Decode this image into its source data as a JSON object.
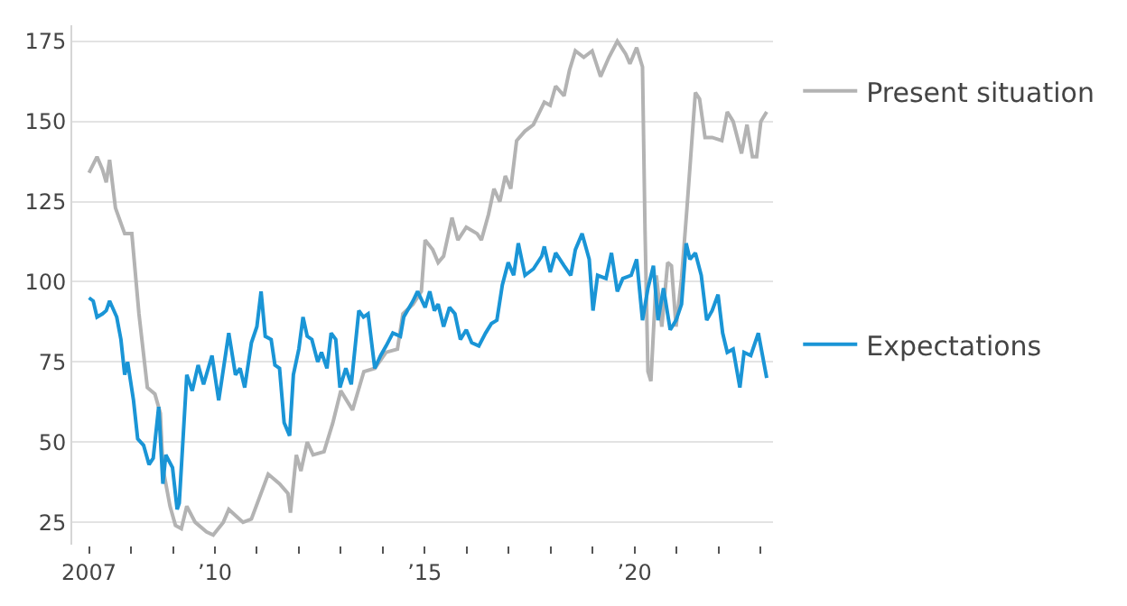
{
  "chart_data": {
    "type": "line",
    "xlim": [
      2006.6,
      2023.3
    ],
    "ylim": [
      18,
      180
    ],
    "xticks": [
      {
        "value": 2007,
        "label": "2007"
      },
      {
        "value": 2008,
        "label": null
      },
      {
        "value": 2009,
        "label": null
      },
      {
        "value": 2010,
        "label": "’10"
      },
      {
        "value": 2011,
        "label": null
      },
      {
        "value": 2012,
        "label": null
      },
      {
        "value": 2013,
        "label": null
      },
      {
        "value": 2014,
        "label": null
      },
      {
        "value": 2015,
        "label": "’15"
      },
      {
        "value": 2016,
        "label": null
      },
      {
        "value": 2017,
        "label": null
      },
      {
        "value": 2018,
        "label": null
      },
      {
        "value": 2019,
        "label": null
      },
      {
        "value": 2020,
        "label": "’20"
      },
      {
        "value": 2021,
        "label": null
      },
      {
        "value": 2022,
        "label": null
      },
      {
        "value": 2023,
        "label": null
      }
    ],
    "yticks": [
      25,
      50,
      75,
      100,
      125,
      150,
      175
    ],
    "grid": "y",
    "legend": "right",
    "marker": "none",
    "line_style": "solid",
    "series": [
      {
        "name": "Present situation",
        "color": "#b3b3b3",
        "x": [
          2007.0,
          2007.19,
          2007.32,
          2007.41,
          2007.49,
          2007.63,
          2007.85,
          2008.02,
          2008.19,
          2008.39,
          2008.57,
          2008.7,
          2008.76,
          2008.93,
          2009.06,
          2009.2,
          2009.33,
          2009.53,
          2009.8,
          2009.96,
          2010.2,
          2010.33,
          2010.67,
          2010.87,
          2011.27,
          2011.54,
          2011.74,
          2011.8,
          2011.94,
          2012.05,
          2012.2,
          2012.34,
          2012.6,
          2012.81,
          2013.0,
          2013.28,
          2013.55,
          2013.81,
          2014.08,
          2014.35,
          2014.48,
          2014.72,
          2014.92,
          2015.01,
          2015.19,
          2015.32,
          2015.45,
          2015.65,
          2015.79,
          2015.99,
          2016.25,
          2016.35,
          2016.52,
          2016.65,
          2016.79,
          2016.92,
          2017.05,
          2017.19,
          2017.39,
          2017.59,
          2017.85,
          2017.99,
          2018.12,
          2018.32,
          2018.45,
          2018.59,
          2018.79,
          2018.99,
          2019.19,
          2019.39,
          2019.59,
          2019.79,
          2019.89,
          2020.05,
          2020.19,
          2020.25,
          2020.32,
          2020.39,
          2020.52,
          2020.65,
          2020.79,
          2020.88,
          2020.99,
          2021.12,
          2021.25,
          2021.45,
          2021.55,
          2021.68,
          2021.85,
          2022.08,
          2022.21,
          2022.35,
          2022.55,
          2022.68,
          2022.81,
          2022.91,
          2023.01,
          2023.15
        ],
        "values": [
          134,
          139,
          135,
          131,
          138,
          123,
          115,
          115,
          90,
          67,
          65,
          59,
          42,
          30,
          24,
          23,
          30,
          25,
          22,
          21,
          25,
          29,
          25,
          26,
          40,
          37,
          34,
          28,
          46,
          41,
          50,
          46,
          47,
          56,
          66,
          60,
          72,
          73,
          78,
          79,
          90,
          93,
          97,
          113,
          110,
          106,
          108,
          120,
          113,
          117,
          115,
          113,
          121,
          129,
          125,
          133,
          129,
          144,
          147,
          149,
          156,
          155,
          161,
          158,
          166,
          172,
          170,
          172,
          164,
          170,
          175,
          171,
          168,
          173,
          167,
          116,
          72,
          69,
          102,
          86,
          106,
          105,
          86,
          101,
          123,
          159,
          157,
          145,
          145,
          144,
          153,
          150,
          140,
          149,
          139,
          139,
          150,
          153
        ]
      },
      {
        "name": "Expectations",
        "color": "#1a95d6",
        "x": [
          2007.0,
          2007.1,
          2007.19,
          2007.32,
          2007.41,
          2007.49,
          2007.66,
          2007.76,
          2007.85,
          2007.92,
          2008.06,
          2008.16,
          2008.3,
          2008.43,
          2008.53,
          2008.66,
          2008.76,
          2008.83,
          2008.99,
          2009.1,
          2009.15,
          2009.33,
          2009.46,
          2009.6,
          2009.73,
          2009.93,
          2010.09,
          2010.33,
          2010.49,
          2010.6,
          2010.71,
          2010.87,
          2011.0,
          2011.1,
          2011.2,
          2011.34,
          2011.43,
          2011.54,
          2011.65,
          2011.78,
          2011.87,
          2012.0,
          2012.1,
          2012.2,
          2012.31,
          2012.45,
          2012.54,
          2012.67,
          2012.77,
          2012.88,
          2012.98,
          2013.12,
          2013.25,
          2013.43,
          2013.54,
          2013.65,
          2013.81,
          2013.95,
          2014.08,
          2014.24,
          2014.42,
          2014.5,
          2014.72,
          2014.83,
          2015.01,
          2015.12,
          2015.23,
          2015.32,
          2015.45,
          2015.59,
          2015.72,
          2015.85,
          2015.99,
          2016.12,
          2016.29,
          2016.45,
          2016.59,
          2016.72,
          2016.85,
          2016.99,
          2017.12,
          2017.23,
          2017.39,
          2017.59,
          2017.79,
          2017.85,
          2017.99,
          2018.12,
          2018.32,
          2018.48,
          2018.59,
          2018.75,
          2018.92,
          2019.01,
          2019.12,
          2019.32,
          2019.45,
          2019.59,
          2019.72,
          2019.92,
          2020.05,
          2020.19,
          2020.32,
          2020.45,
          2020.56,
          2020.69,
          2020.85,
          2020.99,
          2021.12,
          2021.23,
          2021.32,
          2021.45,
          2021.59,
          2021.72,
          2021.85,
          2021.99,
          2022.1,
          2022.21,
          2022.35,
          2022.51,
          2022.61,
          2022.77,
          2022.95,
          2023.15
        ],
        "values": [
          95,
          94,
          89,
          90,
          91,
          94,
          89,
          82,
          71,
          75,
          63,
          51,
          49,
          43,
          45,
          61,
          37,
          46,
          42,
          29,
          31,
          71,
          66,
          74,
          68,
          77,
          63,
          84,
          71,
          73,
          67,
          81,
          86,
          97,
          83,
          82,
          74,
          73,
          56,
          52,
          71,
          79,
          89,
          83,
          82,
          75,
          78,
          73,
          84,
          82,
          67,
          73,
          68,
          91,
          89,
          90,
          73,
          77,
          80,
          84,
          83,
          89,
          94,
          97,
          92,
          97,
          91,
          93,
          86,
          92,
          90,
          82,
          85,
          81,
          80,
          84,
          87,
          88,
          99,
          106,
          102,
          112,
          102,
          104,
          108,
          111,
          103,
          109,
          105,
          102,
          110,
          115,
          107,
          91,
          102,
          101,
          109,
          97,
          101,
          102,
          107,
          88,
          98,
          105,
          88,
          98,
          85,
          88,
          93,
          112,
          107,
          109,
          102,
          88,
          91,
          96,
          84,
          78,
          79,
          67,
          78,
          77,
          84,
          70
        ]
      }
    ]
  }
}
